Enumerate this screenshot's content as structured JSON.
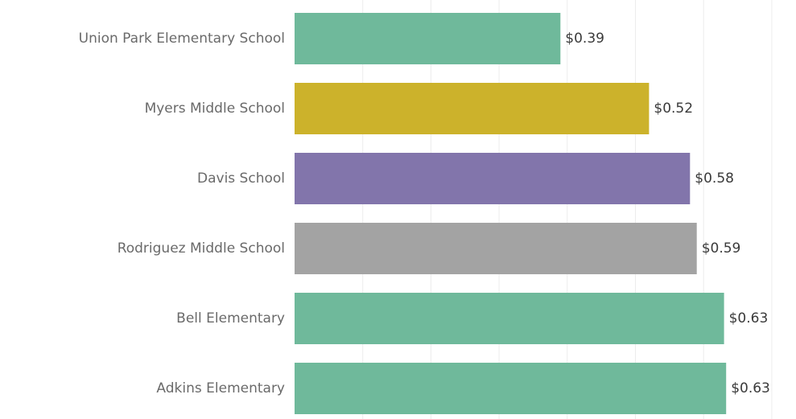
{
  "chart_data": {
    "type": "bar",
    "orientation": "horizontal",
    "title": "",
    "xlabel": "",
    "ylabel": "",
    "categories": [
      "Union Park Elementary School",
      "Myers Middle School",
      "Davis School",
      "Rodriguez Middle School",
      "Bell Elementary",
      "Adkins Elementary"
    ],
    "values": [
      0.39,
      0.52,
      0.58,
      0.59,
      0.63,
      0.633
    ],
    "value_labels": [
      "$0.39",
      "$0.52",
      "$0.58",
      "$0.59",
      "$0.63",
      "$0.63"
    ],
    "colors": [
      "#6fb99b",
      "#ccb22b",
      "#8275ab",
      "#a3a3a3",
      "#6fb99b",
      "#6fb99b"
    ],
    "xlim": [
      0,
      0.7
    ],
    "grid": true,
    "legend": "none"
  }
}
